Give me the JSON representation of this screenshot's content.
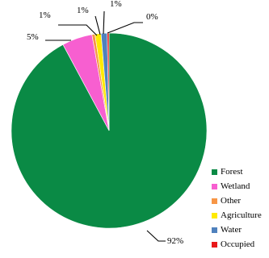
{
  "chart_data": {
    "type": "pie",
    "title": "",
    "categories": [
      "Forest",
      "Wetland",
      "Other",
      "Agriculture",
      "Water",
      "Occupied"
    ],
    "values": [
      92,
      5,
      0.5,
      1,
      1,
      0.3
    ],
    "data_labels": [
      "92%",
      "5%",
      "1%",
      "1%",
      "1%",
      "0%"
    ],
    "colors": [
      "#0a8a45",
      "#f75fd0",
      "#f79646",
      "#ffea00",
      "#4f81bd",
      "#e8191a"
    ],
    "legend": "right"
  }
}
